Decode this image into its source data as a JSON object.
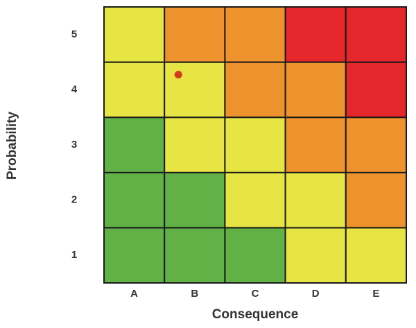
{
  "chart_data": {
    "type": "heatmap",
    "x_label": "Consequence",
    "y_label": "Probability",
    "x_categories": [
      "A",
      "B",
      "C",
      "D",
      "E"
    ],
    "y_categories": [
      "1",
      "2",
      "3",
      "4",
      "5"
    ],
    "cell_colors": [
      [
        "#62b146",
        "#62b146",
        "#62b146",
        "#e6e544",
        "#e6e544"
      ],
      [
        "#62b146",
        "#62b146",
        "#e6e544",
        "#e6e544",
        "#ee922d"
      ],
      [
        "#62b146",
        "#e6e544",
        "#e6e544",
        "#ee922d",
        "#ee922d"
      ],
      [
        "#e6e544",
        "#e6e544",
        "#ee922d",
        "#ee922d",
        "#e5262a"
      ],
      [
        "#e6e544",
        "#ee922d",
        "#ee922d",
        "#e5262a",
        "#e5262a"
      ]
    ],
    "marker": {
      "x": "B",
      "y": "4",
      "color": "#d63a1b"
    }
  }
}
